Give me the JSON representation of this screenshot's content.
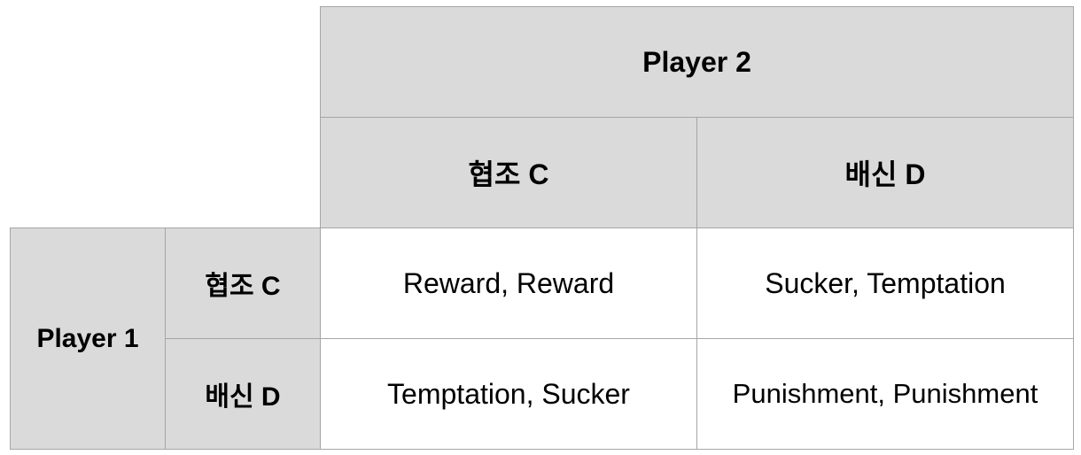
{
  "column_player": "Player 2",
  "row_player": "Player 1",
  "strategies": {
    "col": [
      "협조 C",
      "배신 D"
    ],
    "row": [
      "협조 C",
      "배신 D"
    ]
  },
  "payoffs": [
    [
      "Reward, Reward",
      "Sucker, Temptation"
    ],
    [
      "Temptation, Sucker",
      "Punishment, Punishment"
    ]
  ],
  "colors": {
    "header_bg": "#dadada",
    "cell_bg": "#ffffff",
    "border": "#a6a6a6"
  }
}
